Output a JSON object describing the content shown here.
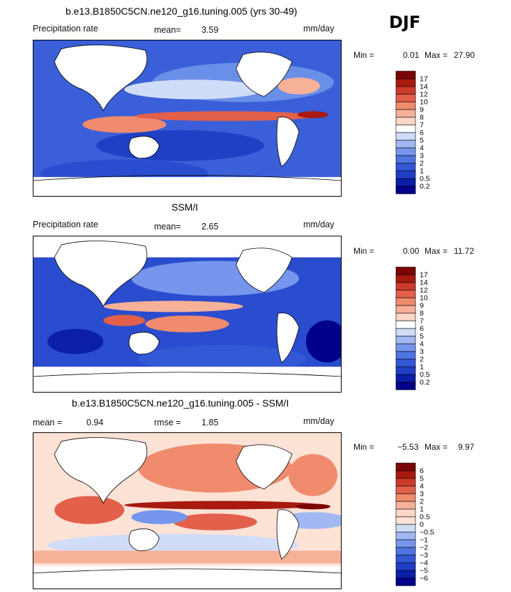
{
  "season": "DJF",
  "chart_data": [
    {
      "type": "heatmap",
      "title": "b.e13.B1850C5CN.ne120_g16.tuning.005 (yrs 30-49)",
      "variable": "Precipitation rate",
      "mean_label": "mean=",
      "mean_value": "3.59",
      "units": "mm/day",
      "min_label": "Min =",
      "min_value": "0.01",
      "max_label": "Max =",
      "max_value": "27.90",
      "colorbar_levels": [
        "0.2",
        "0.5",
        "1",
        "2",
        "3",
        "4",
        "5",
        "6",
        "7",
        "8",
        "9",
        "10",
        "12",
        "14",
        "17"
      ],
      "colors": [
        "#00008b",
        "#0a1ea8",
        "#1f3fc4",
        "#3358d6",
        "#4f74e2",
        "#7596ec",
        "#a2b8f3",
        "#d0ddf9",
        "#ffffff",
        "#fcd6c6",
        "#f7b198",
        "#f08b6d",
        "#e3604a",
        "#cc3a2c",
        "#a8190f",
        "#7a0504"
      ]
    },
    {
      "type": "heatmap",
      "title": "SSM/I",
      "variable": "Precipitation rate",
      "mean_label": "mean=",
      "mean_value": "2.65",
      "units": "mm/day",
      "min_label": "Min =",
      "min_value": "0.00",
      "max_label": "Max =",
      "max_value": "11.72",
      "colorbar_levels": [
        "0.2",
        "0.5",
        "1",
        "2",
        "3",
        "4",
        "5",
        "6",
        "7",
        "8",
        "9",
        "10",
        "12",
        "14",
        "17"
      ],
      "colors": [
        "#00008b",
        "#0a1ea8",
        "#1f3fc4",
        "#3358d6",
        "#4f74e2",
        "#7596ec",
        "#a2b8f3",
        "#d0ddf9",
        "#ffffff",
        "#fcd6c6",
        "#f7b198",
        "#f08b6d",
        "#e3604a",
        "#cc3a2c",
        "#a8190f",
        "#7a0504"
      ]
    },
    {
      "type": "heatmap",
      "title": "b.e13.B1850C5CN.ne120_g16.tuning.005 - SSM/I",
      "mean_label": "mean =",
      "mean_value": "0.94",
      "rmse_label": "rmse =",
      "rmse_value": "1.85",
      "units": "mm/day",
      "min_label": "Min =",
      "min_value": "−5.53",
      "max_label": "Max =",
      "max_value": "9.97",
      "colorbar_levels": [
        "−6",
        "−5",
        "−4",
        "−3",
        "−2",
        "−1",
        "−0.5",
        "0",
        "0.5",
        "1",
        "2",
        "3",
        "4",
        "5",
        "6"
      ],
      "colors": [
        "#00008b",
        "#0a1ea8",
        "#1f3fc4",
        "#3358d6",
        "#4f74e2",
        "#7596ec",
        "#a2b8f3",
        "#d0ddf9",
        "#fde2d6",
        "#fcd6c6",
        "#f7b198",
        "#f08b6d",
        "#e3604a",
        "#cc3a2c",
        "#a8190f",
        "#7a0504"
      ]
    }
  ]
}
